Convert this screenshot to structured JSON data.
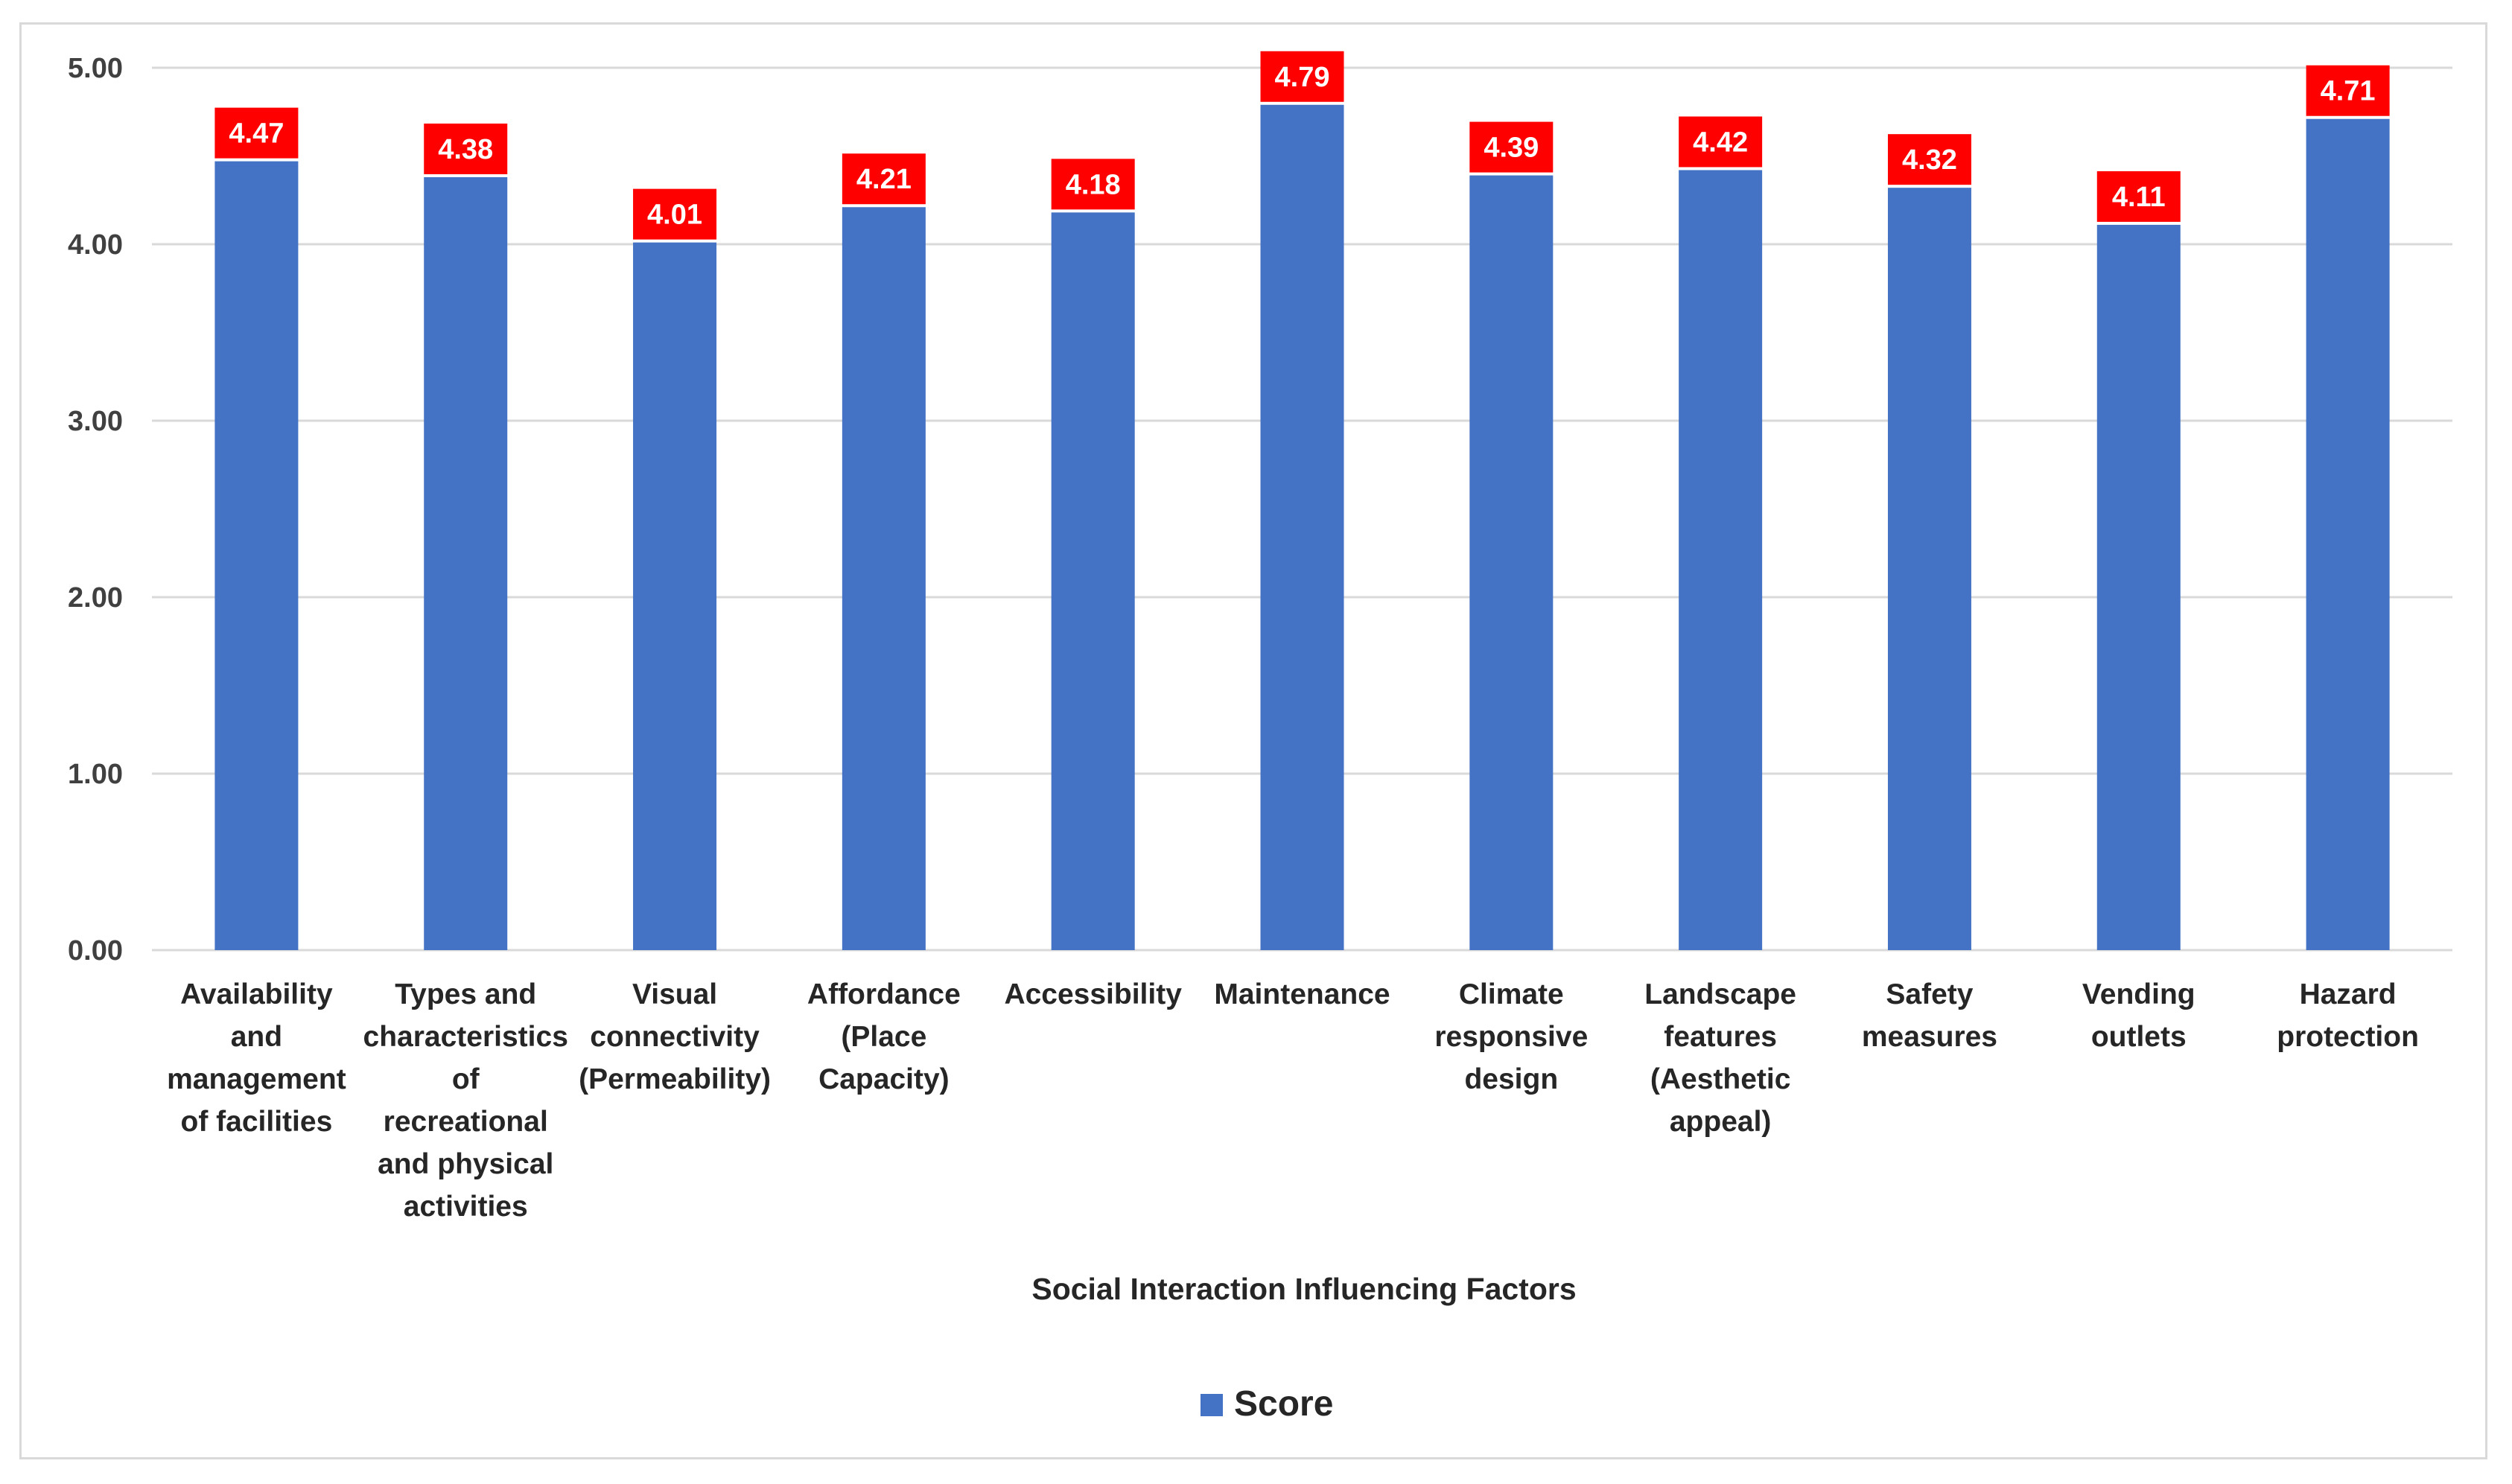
{
  "chart_data": {
    "type": "bar",
    "title": "",
    "xlabel": "Social Interaction Influencing Factors",
    "ylabel": "",
    "ylim": [
      0,
      5
    ],
    "yticks": [
      "0.00",
      "1.00",
      "2.00",
      "3.00",
      "4.00",
      "5.00"
    ],
    "grid": true,
    "legend_position": "bottom",
    "categories": [
      [
        "Availability",
        "and",
        "management",
        "of facilities"
      ],
      [
        "Types and",
        "characteristics",
        "of",
        "recreational",
        "and physical",
        "activities"
      ],
      [
        "Visual",
        "connectivity",
        "(Permeability)"
      ],
      [
        "Affordance",
        "(Place",
        "Capacity)"
      ],
      [
        "Accessibility"
      ],
      [
        "Maintenance"
      ],
      [
        "Climate",
        "responsive",
        "design"
      ],
      [
        "Landscape",
        "features",
        "(Aesthetic",
        "appeal)"
      ],
      [
        "Safety",
        "measures"
      ],
      [
        "Vending",
        "outlets"
      ],
      [
        "Hazard",
        "protection"
      ]
    ],
    "series": [
      {
        "name": "Score",
        "color": "#4472c4",
        "values": [
          4.47,
          4.38,
          4.01,
          4.21,
          4.18,
          4.79,
          4.39,
          4.42,
          4.32,
          4.11,
          4.71
        ],
        "data_labels": [
          "4.47",
          "4.38",
          "4.01",
          "4.21",
          "4.18",
          "4.79",
          "4.39",
          "4.42",
          "4.32",
          "4.11",
          "4.71"
        ]
      }
    ],
    "data_label_style": {
      "background": "#ff0000",
      "text_color": "#ffffff"
    },
    "gridline_color": "#d9d9d9"
  }
}
